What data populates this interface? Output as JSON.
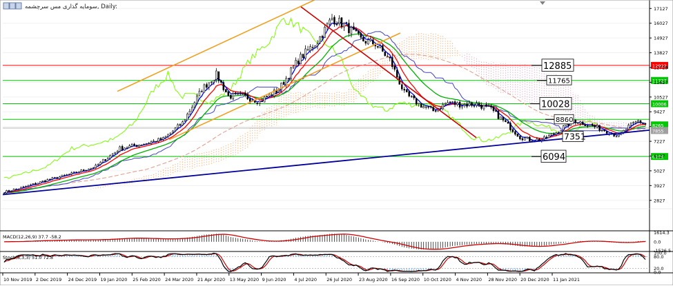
{
  "window": {
    "title": "سومایه گذاری مس سرچشمه, Daily:",
    "header_icons": [
      "chart-type-icon",
      "period-icon",
      "window-icon"
    ]
  },
  "chart_data": [
    {
      "type": "candlestick",
      "title": "سومایه گذاری مس سرچشمه, Daily:",
      "timeframe": "Daily",
      "y_ticks": [
        17127,
        16027,
        14927,
        13827,
        12729,
        11627,
        10527,
        9427,
        8327,
        7227,
        6127,
        5027,
        3927,
        2827
      ],
      "ylim": [
        2250,
        17450
      ],
      "x_ticks": [
        "10 Nov 2019",
        "2 Dec 2019",
        "24 Dec 2019",
        "19 Jan 2020",
        "25 Feb 2020",
        "24 Mar 2020",
        "21 Apr 2020",
        "13 May 2020",
        "9 Jun 2020",
        "4 Jul 2020",
        "26 Jul 2020",
        "23 Aug 2020",
        "16 Sep 2020",
        "10 Oct 2020",
        "4 Nov 2020",
        "28 Nov 2020",
        "20 Dec 2020",
        "11 Jan 2021"
      ],
      "close_anchors": [
        [
          0,
          3450
        ],
        [
          8,
          3800
        ],
        [
          18,
          4350
        ],
        [
          28,
          4800
        ],
        [
          38,
          5350
        ],
        [
          48,
          6700
        ],
        [
          58,
          7050
        ],
        [
          66,
          7400
        ],
        [
          74,
          8600
        ],
        [
          82,
          11100
        ],
        [
          88,
          12200
        ],
        [
          93,
          10600
        ],
        [
          99,
          10600
        ],
        [
          106,
          10200
        ],
        [
          114,
          11100
        ],
        [
          122,
          13300
        ],
        [
          130,
          14700
        ],
        [
          136,
          16400
        ],
        [
          142,
          15800
        ],
        [
          148,
          14800
        ],
        [
          154,
          14500
        ],
        [
          160,
          13300
        ],
        [
          166,
          10800
        ],
        [
          172,
          10000
        ],
        [
          178,
          9500
        ],
        [
          184,
          10100
        ],
        [
          190,
          9950
        ],
        [
          196,
          10000
        ],
        [
          202,
          9600
        ],
        [
          208,
          8600
        ],
        [
          214,
          7550
        ],
        [
          219,
          7300
        ],
        [
          224,
          7400
        ],
        [
          230,
          8000
        ],
        [
          236,
          8800
        ],
        [
          240,
          8600
        ],
        [
          246,
          8250
        ],
        [
          250,
          8000
        ],
        [
          255,
          7600
        ],
        [
          259,
          8300
        ],
        [
          263,
          8750
        ],
        [
          266,
          8500
        ]
      ],
      "price_levels": [
        {
          "value": 12885,
          "label": "12885",
          "color": "#ff0000",
          "axis_label": "12922"
        },
        {
          "value": 11765,
          "label": "11765",
          "color": "#00c800",
          "axis_label": "11727"
        },
        {
          "value": 10028,
          "label": "10028",
          "color": "#00c800",
          "axis_label": "10006"
        },
        {
          "value": 8860,
          "label": "8860",
          "color": "#00c800",
          "axis_label": ""
        },
        {
          "value": 8210,
          "label": "",
          "color": "#b0b0b0",
          "axis_label": "7855"
        },
        {
          "value": 6094,
          "label": "6094",
          "color": "#00c800",
          "axis_label": "6105"
        }
      ],
      "trendline_label": "7351",
      "current_price_labels": [
        "8265",
        "7855"
      ],
      "colors": {
        "candle": "#000000",
        "bull_candle": "#000000",
        "ma_fast": "#0000ff",
        "ma_mid": "#ff0000",
        "ma_slow": "#00b000",
        "kijun": "#4040c0",
        "chikou": "#7cfc00",
        "cloud_up": "#f4a460",
        "cloud_down": "#d8a0c0",
        "channel": "#f0a020",
        "support": "#000099",
        "resistance": "#cc0000",
        "ma_long": "#e0a090"
      }
    },
    {
      "type": "bar",
      "title": "MACD(12,26,9) 37.7 -58.2",
      "y_ticks": [
        1614.3,
        0.0,
        -1526.5
      ],
      "ylim": [
        -1600,
        1700
      ],
      "colors": {
        "histogram": "#000000",
        "signal": "#cc0000"
      }
    },
    {
      "type": "line",
      "title": "Stoch(8,3,3) 51.0 72.8",
      "y_ticks": [
        100,
        80,
        20,
        0
      ],
      "ylim": [
        0,
        100
      ],
      "colors": {
        "main": "#000000",
        "signal": "#cc0000",
        "fill": "#1e90ff"
      }
    }
  ]
}
